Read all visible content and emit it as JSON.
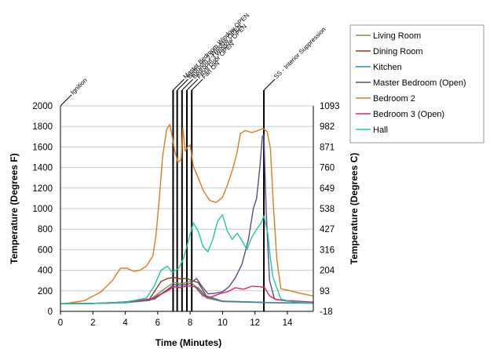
{
  "chart_data": {
    "type": "line",
    "xlabel": "Time (Minutes)",
    "ylabel": "Temperature (Degrees F)",
    "y2label": "Temperature (Degrees C)",
    "xlim": [
      0,
      15.6
    ],
    "ylim": [
      0,
      2000
    ],
    "xticks": [
      "0",
      "2",
      "4",
      "6",
      "8",
      "10",
      "12",
      "14"
    ],
    "yticks": [
      "0",
      "200",
      "400",
      "600",
      "800",
      "1000",
      "1200",
      "1400",
      "1600",
      "1800",
      "2000"
    ],
    "y2ticks": [
      "-18",
      "93",
      "204",
      "316",
      "427",
      "538",
      "649",
      "760",
      "871",
      "982",
      "1093"
    ],
    "grid": "horizontal",
    "legend": "right",
    "events": [
      {
        "label": "Ignition",
        "x": 0
      },
      {
        "label": "Master Bedroom Window OPEN",
        "x": 6.95
      },
      {
        "label": "Bedroom 2 Window OPEN",
        "x": 7.2
      },
      {
        "label": "Bedroom 3 Window OPEN",
        "x": 7.5
      },
      {
        "label": "Front Door OPEN",
        "x": 7.8
      },
      {
        "label": "Fan ON",
        "x": 8.1
      },
      {
        "label": "SS - Interior Suppression",
        "x": 12.55
      }
    ],
    "series": [
      {
        "name": "Living Room",
        "color": "#8c8c3c",
        "points": [
          [
            0,
            75
          ],
          [
            2,
            77
          ],
          [
            4,
            85
          ],
          [
            5.5,
            110
          ],
          [
            6.5,
            230
          ],
          [
            7,
            280
          ],
          [
            7.5,
            270
          ],
          [
            8,
            290
          ],
          [
            8.5,
            220
          ],
          [
            9,
            130
          ],
          [
            10,
            95
          ],
          [
            12,
            88
          ],
          [
            13,
            85
          ],
          [
            15.6,
            80
          ]
        ]
      },
      {
        "name": "Dining Room",
        "color": "#8b3a2a",
        "points": [
          [
            0,
            75
          ],
          [
            2,
            77
          ],
          [
            4,
            90
          ],
          [
            5.5,
            120
          ],
          [
            6.2,
            290
          ],
          [
            6.6,
            320
          ],
          [
            7,
            330
          ],
          [
            7.4,
            315
          ],
          [
            7.8,
            320
          ],
          [
            8.1,
            300
          ],
          [
            8.5,
            280
          ],
          [
            9,
            150
          ],
          [
            10,
            100
          ],
          [
            12,
            90
          ],
          [
            13,
            85
          ],
          [
            15.6,
            80
          ]
        ]
      },
      {
        "name": "Kitchen",
        "color": "#2e8bb0",
        "points": [
          [
            0,
            75
          ],
          [
            2,
            77
          ],
          [
            4,
            85
          ],
          [
            5.5,
            105
          ],
          [
            6.5,
            200
          ],
          [
            7,
            240
          ],
          [
            7.5,
            235
          ],
          [
            8,
            250
          ],
          [
            8.5,
            230
          ],
          [
            9,
            140
          ],
          [
            10,
            100
          ],
          [
            12,
            90
          ],
          [
            13,
            85
          ],
          [
            15.6,
            80
          ]
        ]
      },
      {
        "name": "Master Bedroom (Open)",
        "color": "#5a4a86",
        "points": [
          [
            0,
            75
          ],
          [
            3,
            80
          ],
          [
            4.5,
            100
          ],
          [
            5.8,
            120
          ],
          [
            6.5,
            200
          ],
          [
            7,
            260
          ],
          [
            7.5,
            255
          ],
          [
            8,
            270
          ],
          [
            8.4,
            320
          ],
          [
            8.7,
            250
          ],
          [
            9.1,
            170
          ],
          [
            9.5,
            175
          ],
          [
            10,
            190
          ],
          [
            10.4,
            240
          ],
          [
            10.8,
            330
          ],
          [
            11.2,
            460
          ],
          [
            11.6,
            700
          ],
          [
            11.9,
            1000
          ],
          [
            12.1,
            1100
          ],
          [
            12.3,
            1400
          ],
          [
            12.45,
            1700
          ],
          [
            12.55,
            1720
          ],
          [
            12.7,
            950
          ],
          [
            12.9,
            300
          ],
          [
            13.2,
            120
          ],
          [
            14,
            100
          ],
          [
            15.6,
            85
          ]
        ]
      },
      {
        "name": "Bedroom 2",
        "color": "#e07a1e",
        "points": [
          [
            0,
            75
          ],
          [
            0.5,
            80
          ],
          [
            1.5,
            105
          ],
          [
            2.5,
            190
          ],
          [
            3.2,
            300
          ],
          [
            3.7,
            420
          ],
          [
            4.1,
            420
          ],
          [
            4.5,
            390
          ],
          [
            4.9,
            400
          ],
          [
            5.3,
            440
          ],
          [
            5.7,
            540
          ],
          [
            5.9,
            750
          ],
          [
            6.1,
            1100
          ],
          [
            6.3,
            1500
          ],
          [
            6.55,
            1770
          ],
          [
            6.75,
            1820
          ],
          [
            6.9,
            1700
          ],
          [
            7.05,
            1560
          ],
          [
            7.25,
            1450
          ],
          [
            7.45,
            1480
          ],
          [
            7.55,
            1780
          ],
          [
            7.7,
            1560
          ],
          [
            7.85,
            1600
          ],
          [
            8.0,
            1620
          ],
          [
            8.2,
            1410
          ],
          [
            8.5,
            1300
          ],
          [
            8.8,
            1180
          ],
          [
            9.2,
            1080
          ],
          [
            9.6,
            1060
          ],
          [
            10.0,
            1110
          ],
          [
            10.3,
            1230
          ],
          [
            10.6,
            1370
          ],
          [
            10.9,
            1550
          ],
          [
            11.1,
            1730
          ],
          [
            11.4,
            1760
          ],
          [
            11.8,
            1740
          ],
          [
            12.2,
            1760
          ],
          [
            12.5,
            1780
          ],
          [
            12.75,
            1750
          ],
          [
            12.95,
            1590
          ],
          [
            13.15,
            1000
          ],
          [
            13.35,
            500
          ],
          [
            13.6,
            220
          ],
          [
            14.2,
            200
          ],
          [
            14.8,
            175
          ],
          [
            15.6,
            150
          ]
        ]
      },
      {
        "name": "Bedroom 3 (Open)",
        "color": "#e0246e",
        "points": [
          [
            0,
            75
          ],
          [
            2,
            78
          ],
          [
            4,
            90
          ],
          [
            5.5,
            115
          ],
          [
            6.5,
            190
          ],
          [
            7,
            240
          ],
          [
            7.4,
            230
          ],
          [
            7.8,
            250
          ],
          [
            8.3,
            240
          ],
          [
            8.8,
            150
          ],
          [
            9.3,
            140
          ],
          [
            9.8,
            170
          ],
          [
            10.3,
            190
          ],
          [
            10.8,
            230
          ],
          [
            11.3,
            215
          ],
          [
            11.8,
            245
          ],
          [
            12.3,
            240
          ],
          [
            12.6,
            230
          ],
          [
            12.9,
            150
          ],
          [
            13.3,
            115
          ],
          [
            14,
            105
          ],
          [
            15.6,
            90
          ]
        ]
      },
      {
        "name": "Hall",
        "color": "#1ec8a0",
        "points": [
          [
            0,
            75
          ],
          [
            2,
            77
          ],
          [
            4,
            90
          ],
          [
            5.3,
            130
          ],
          [
            5.8,
            250
          ],
          [
            6.2,
            400
          ],
          [
            6.6,
            440
          ],
          [
            6.9,
            380
          ],
          [
            7.3,
            420
          ],
          [
            7.6,
            520
          ],
          [
            8.0,
            750
          ],
          [
            8.2,
            860
          ],
          [
            8.5,
            780
          ],
          [
            8.8,
            630
          ],
          [
            9.1,
            580
          ],
          [
            9.4,
            700
          ],
          [
            9.7,
            880
          ],
          [
            10.0,
            940
          ],
          [
            10.3,
            780
          ],
          [
            10.6,
            700
          ],
          [
            10.9,
            760
          ],
          [
            11.2,
            690
          ],
          [
            11.5,
            600
          ],
          [
            11.8,
            720
          ],
          [
            12.1,
            800
          ],
          [
            12.35,
            850
          ],
          [
            12.55,
            930
          ],
          [
            12.8,
            750
          ],
          [
            12.95,
            520
          ],
          [
            13.1,
            340
          ],
          [
            13.3,
            250
          ],
          [
            13.6,
            120
          ],
          [
            14.2,
            95
          ],
          [
            15.6,
            80
          ]
        ]
      }
    ]
  }
}
